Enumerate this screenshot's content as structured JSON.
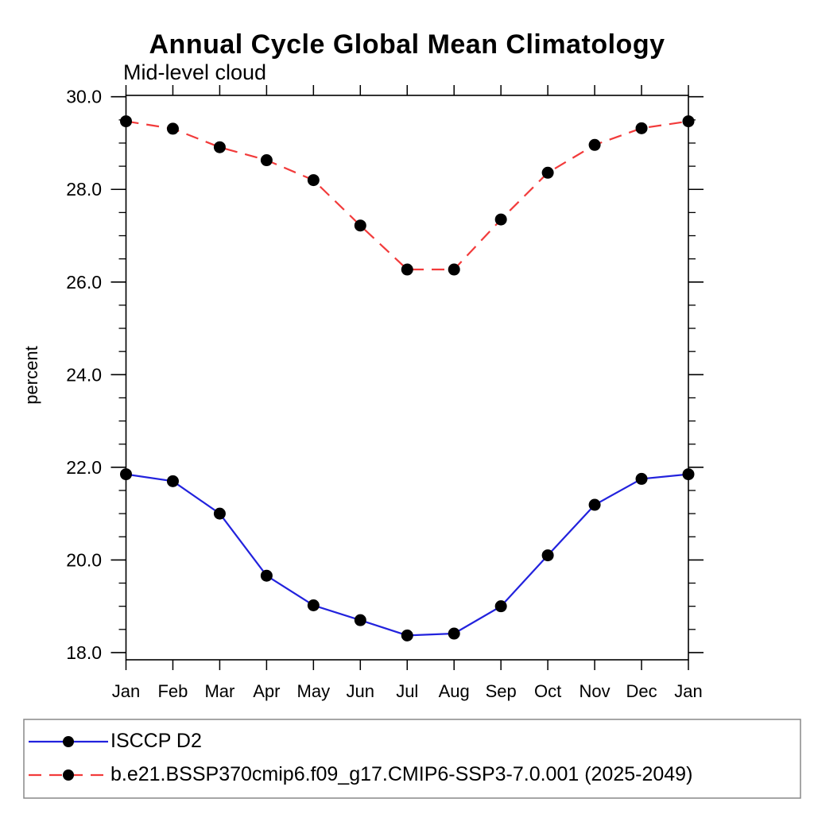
{
  "chart_data": {
    "type": "line",
    "title": "Annual Cycle Global Mean Climatology",
    "subtitle": "Mid-level cloud",
    "ylabel": "percent",
    "xlabel": "",
    "x_labels": [
      "Jan",
      "Feb",
      "Mar",
      "Apr",
      "May",
      "Jun",
      "Jul",
      "Aug",
      "Sep",
      "Oct",
      "Nov",
      "Dec",
      "Jan"
    ],
    "ylim": [
      17.8,
      30.2
    ],
    "y_major_ticks": [
      18.0,
      20.0,
      22.0,
      24.0,
      26.0,
      28.0,
      30.0
    ],
    "y_minor_step": 0.5,
    "grid": false,
    "legend_position": "bottom",
    "axis_color": "#000000",
    "marker_color": "#000000",
    "legend_border_color": "#888888",
    "series": [
      {
        "name": "ISCCP D2",
        "color": "#2222dd",
        "line_style": "solid",
        "marker": "filled-circle",
        "values": [
          21.85,
          21.7,
          21.0,
          19.66,
          19.02,
          18.7,
          18.37,
          18.41,
          19.0,
          20.1,
          21.19,
          21.75,
          21.85
        ]
      },
      {
        "name": "b.e21.BSSP370cmip6.f09_g17.CMIP6-SSP3-7.0.001 (2025-2049)",
        "color": "#f23b3b",
        "line_style": "dashed",
        "marker": "filled-circle",
        "values": [
          29.47,
          29.31,
          28.91,
          28.63,
          28.2,
          27.22,
          26.27,
          26.27,
          27.35,
          28.36,
          28.96,
          29.32,
          29.47
        ]
      }
    ]
  }
}
